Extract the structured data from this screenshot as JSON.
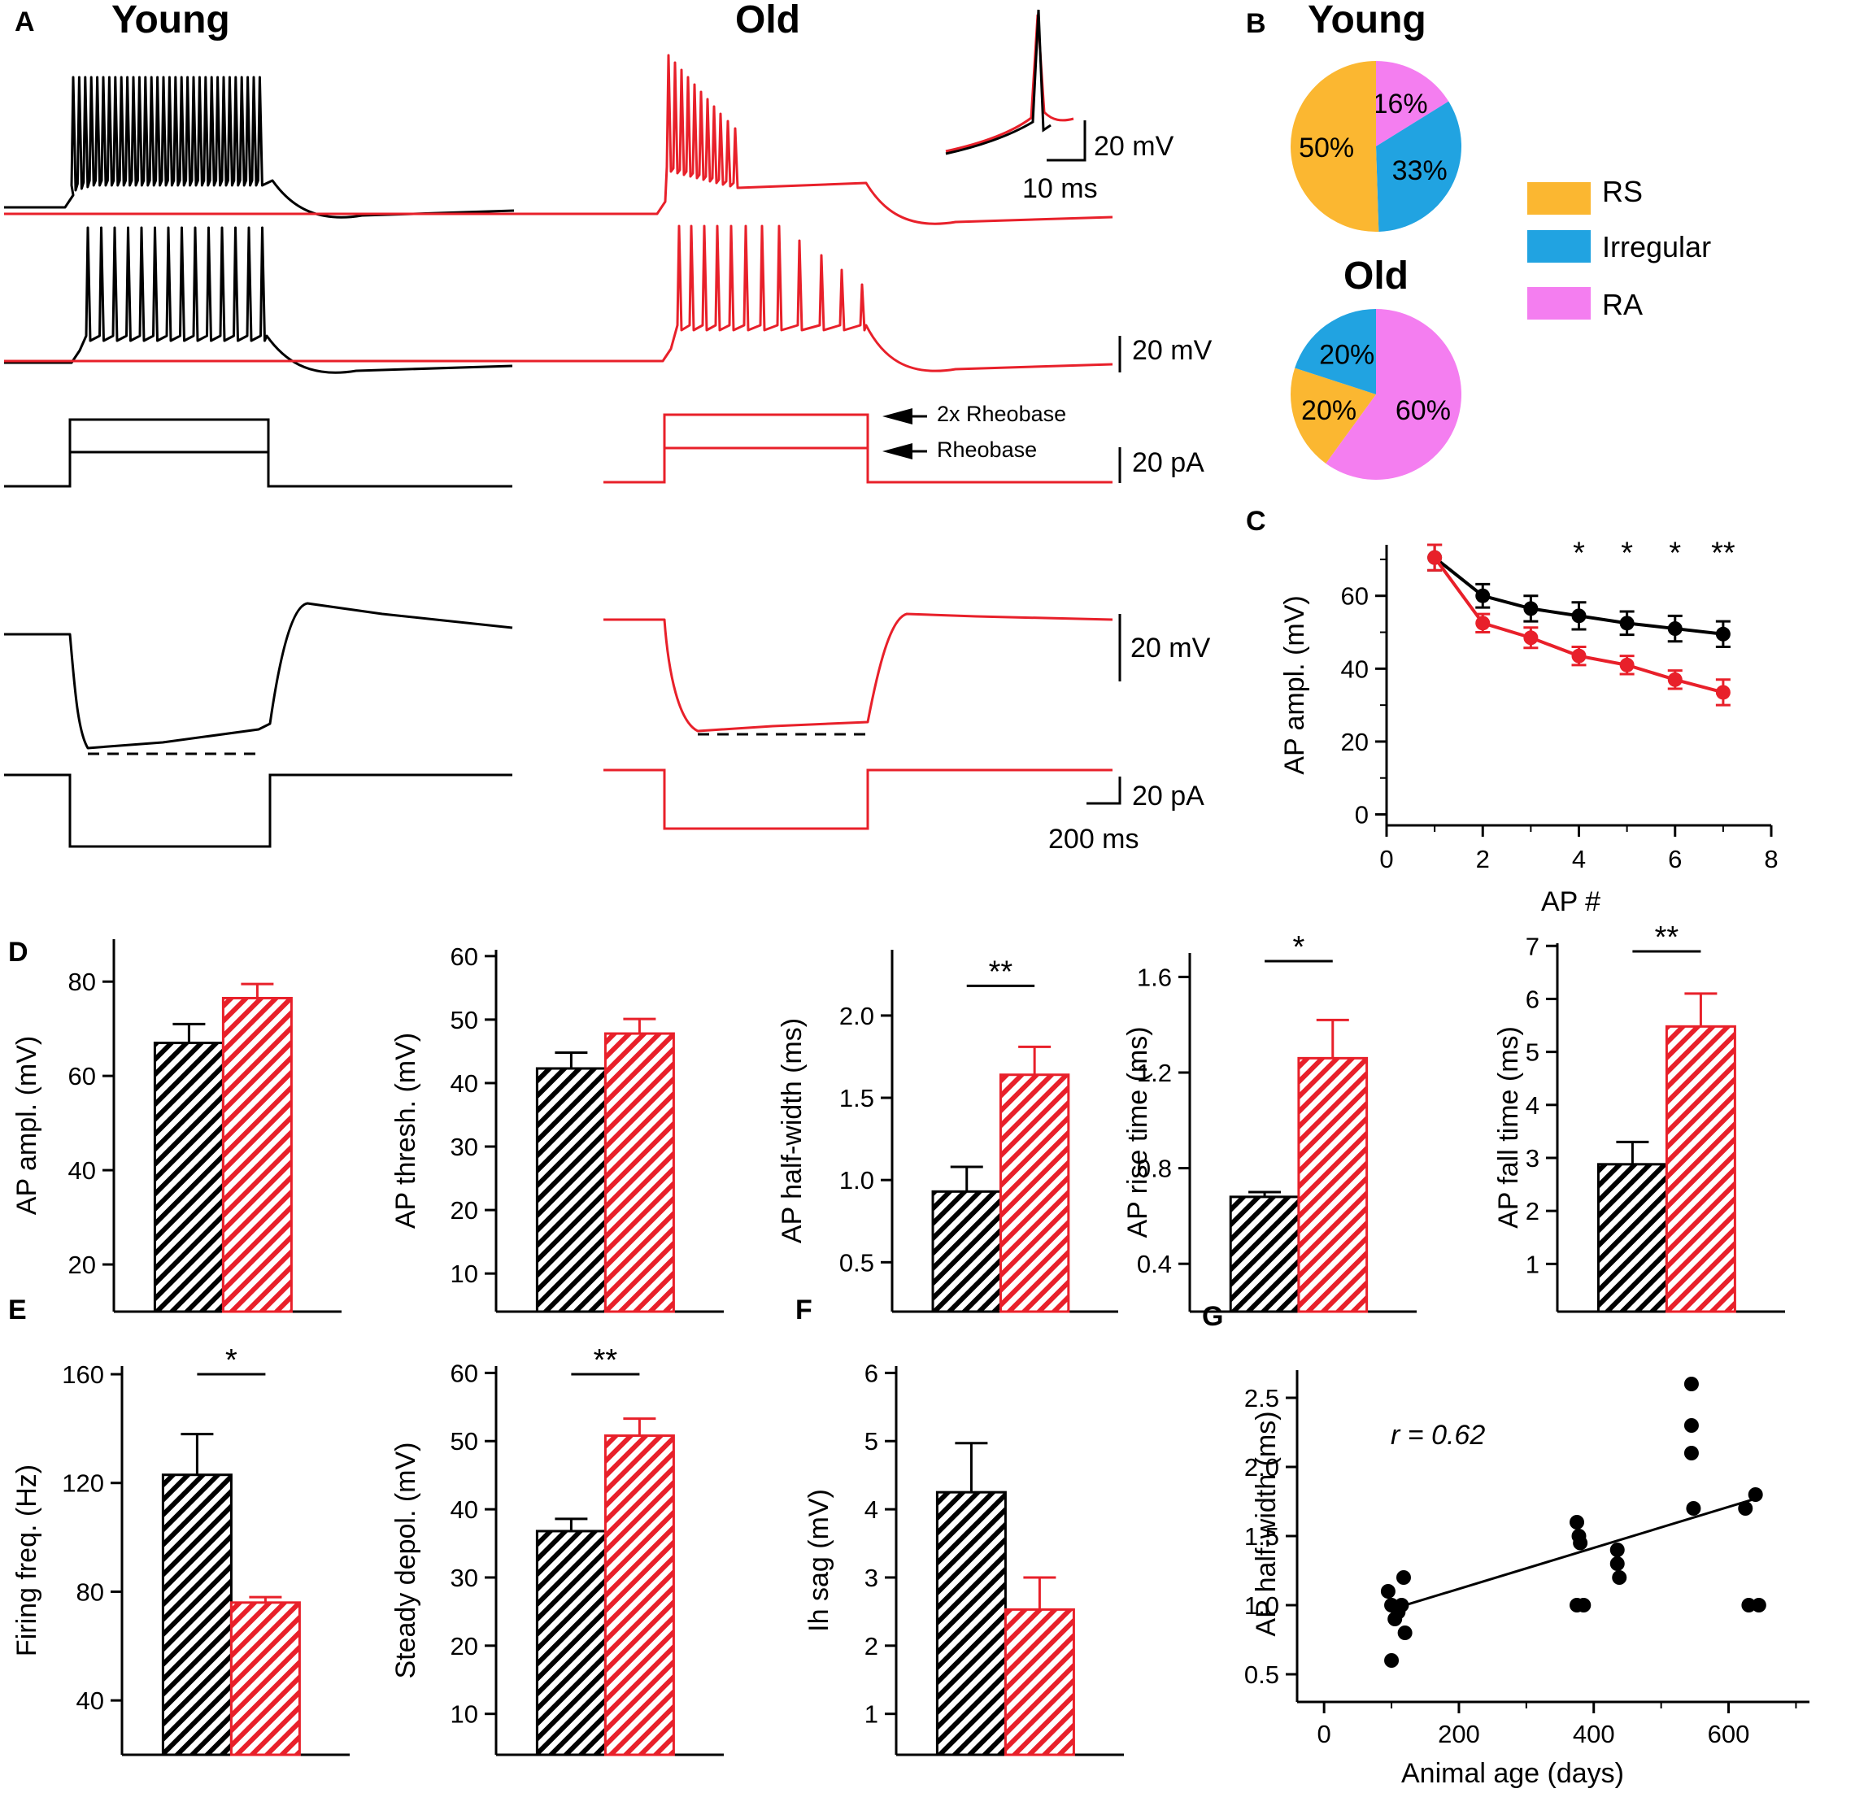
{
  "panel_labels": {
    "A": "A",
    "B": "B",
    "C": "C",
    "D": "D",
    "E": "E",
    "F": "F",
    "G": "G"
  },
  "colors": {
    "young": "#000000",
    "old": "#e8202a",
    "rs": "#fbb731",
    "irregular": "#21a3e1",
    "ra": "#f47ef0"
  },
  "panel_a": {
    "young_title": "Young",
    "old_title": "Old",
    "scale_inset_mv": "20 mV",
    "scale_inset_ms": "10 ms",
    "scale_mv_1": "20 mV",
    "scale_pa_1": "20 pA",
    "scale_mv_2": "20 mV",
    "scale_pa_2": "20 pA",
    "scale_time": "200 ms",
    "arrow_2x_rheobase": "2x Rheobase",
    "arrow_rheobase": "Rheobase"
  },
  "panel_b": {
    "young_title": "Young",
    "old_title": "Old",
    "legend": [
      {
        "key": "rs",
        "label": "RS"
      },
      {
        "key": "irregular",
        "label": "Irregular"
      },
      {
        "key": "ra",
        "label": "RA"
      }
    ]
  },
  "chart_data": [
    {
      "id": "B-young",
      "type": "pie",
      "title": "Young",
      "slices": [
        {
          "label": "RA",
          "value": 16,
          "text": "16%",
          "color": "#f47ef0"
        },
        {
          "label": "Irregular",
          "value": 33,
          "text": "33%",
          "color": "#21a3e1"
        },
        {
          "label": "RS",
          "value": 50,
          "text": "50%",
          "color": "#fbb731"
        }
      ]
    },
    {
      "id": "B-old",
      "type": "pie",
      "title": "Old",
      "slices": [
        {
          "label": "RA",
          "value": 60,
          "text": "60%",
          "color": "#f47ef0"
        },
        {
          "label": "RS",
          "value": 20,
          "text": "20%",
          "color": "#fbb731"
        },
        {
          "label": "Irregular",
          "value": 20,
          "text": "20%",
          "color": "#21a3e1"
        }
      ]
    },
    {
      "id": "C",
      "type": "line",
      "xlabel": "AP #",
      "ylabel": "AP ampl. (mV)",
      "xlim": [
        0,
        8
      ],
      "ylim": [
        -3,
        74
      ],
      "xticks": [
        "0",
        "2",
        "4",
        "6",
        "8"
      ],
      "yticks": [
        "0",
        "20",
        "40",
        "60"
      ],
      "series": [
        {
          "name": "Young",
          "color": "#000000",
          "x": [
            1,
            2,
            3,
            4,
            5,
            6,
            7
          ],
          "y": [
            70.5,
            60,
            56.5,
            54.5,
            52.5,
            51,
            49.5
          ],
          "err": [
            3.5,
            3.2,
            3.5,
            3.7,
            3.2,
            3.5,
            3.5
          ]
        },
        {
          "name": "Old",
          "color": "#e8202a",
          "x": [
            1,
            2,
            3,
            4,
            5,
            6,
            7
          ],
          "y": [
            70.5,
            52.5,
            48.5,
            43.5,
            41,
            37,
            33.5
          ],
          "err": [
            3.5,
            2.5,
            2.8,
            2.5,
            2.5,
            2.5,
            3.5
          ]
        }
      ],
      "significance": [
        {
          "x": 4,
          "text": "*"
        },
        {
          "x": 5,
          "text": "*"
        },
        {
          "x": 6,
          "text": "*"
        },
        {
          "x": 7,
          "text": "**"
        }
      ]
    },
    {
      "id": "D1",
      "type": "bar",
      "ylabel": "AP ampl. (mV)",
      "ylim": [
        10,
        89
      ],
      "yticks": [
        "20",
        "40",
        "60",
        "80"
      ],
      "categories": [
        "Young",
        "Old"
      ],
      "values": [
        67,
        76.5
      ],
      "errors": [
        4,
        3
      ],
      "significance": ""
    },
    {
      "id": "D2",
      "type": "bar",
      "ylabel": "AP thresh. (mV)",
      "ylim": [
        4,
        61
      ],
      "yticks": [
        "10",
        "20",
        "30",
        "40",
        "50",
        "60"
      ],
      "categories": [
        "Young",
        "Old"
      ],
      "values": [
        42.3,
        47.8
      ],
      "errors": [
        2.5,
        2.3
      ],
      "significance": ""
    },
    {
      "id": "D3",
      "type": "bar",
      "ylabel": "AP half-width (ms)",
      "ylim": [
        0.2,
        2.4
      ],
      "yticks": [
        "0.5",
        "1.0",
        "1.5",
        "2.0"
      ],
      "categories": [
        "Young",
        "Old"
      ],
      "values": [
        0.93,
        1.64
      ],
      "errors": [
        0.15,
        0.17
      ],
      "significance": "**"
    },
    {
      "id": "D4",
      "type": "bar",
      "ylabel": "AP rise time (ms)",
      "ylim": [
        0.2,
        1.7
      ],
      "yticks": [
        "0.4",
        "0.8",
        "1.2",
        "1.6"
      ],
      "categories": [
        "Young",
        "Old"
      ],
      "values": [
        0.68,
        1.26
      ],
      "errors": [
        0.02,
        0.16
      ],
      "significance": "*"
    },
    {
      "id": "D5",
      "type": "bar",
      "ylabel": "AP fall time (ms)",
      "ylim": [
        0.1,
        7.05
      ],
      "yticks": [
        "1",
        "2",
        "3",
        "4",
        "5",
        "6",
        "7"
      ],
      "categories": [
        "Young",
        "Old"
      ],
      "values": [
        2.88,
        5.48
      ],
      "errors": [
        0.42,
        0.62
      ],
      "significance": "**"
    },
    {
      "id": "E1",
      "type": "bar",
      "ylabel": "Firing freq. (Hz)",
      "ylim": [
        20,
        163
      ],
      "yticks": [
        "40",
        "80",
        "120",
        "160"
      ],
      "categories": [
        "Young",
        "Old"
      ],
      "values": [
        123,
        76
      ],
      "errors": [
        15,
        2
      ],
      "significance": "*"
    },
    {
      "id": "E2",
      "type": "bar",
      "ylabel": "Steady depol. (mV)",
      "ylim": [
        4,
        61
      ],
      "yticks": [
        "10",
        "20",
        "30",
        "40",
        "50",
        "60"
      ],
      "categories": [
        "Young",
        "Old"
      ],
      "values": [
        36.8,
        50.8
      ],
      "errors": [
        1.8,
        2.5
      ],
      "significance": "**"
    },
    {
      "id": "F",
      "type": "bar",
      "ylabel": "Ih sag (mV)",
      "ylim": [
        0.4,
        6.1
      ],
      "yticks": [
        "1",
        "2",
        "3",
        "4",
        "5",
        "6"
      ],
      "categories": [
        "Young",
        "Old"
      ],
      "values": [
        4.25,
        2.53
      ],
      "errors": [
        0.72,
        0.47
      ],
      "significance": ""
    },
    {
      "id": "G",
      "type": "scatter",
      "xlabel": "Animal age (days)",
      "ylabel": "AP half-width (ms)",
      "xlim": [
        -40,
        720
      ],
      "ylim": [
        0.3,
        2.7
      ],
      "xticks": [
        "0",
        "200",
        "400",
        "600"
      ],
      "yticks": [
        "0.5",
        "1.0",
        "1.5",
        "2.0",
        "2.5"
      ],
      "annotation": "r = 0.62",
      "points": [
        [
          95,
          1.1
        ],
        [
          100,
          1.0
        ],
        [
          100,
          0.6
        ],
        [
          105,
          0.9
        ],
        [
          110,
          0.95
        ],
        [
          115,
          1.0
        ],
        [
          118,
          1.2
        ],
        [
          120,
          0.8
        ],
        [
          375,
          1.6
        ],
        [
          375,
          1.0
        ],
        [
          378,
          1.5
        ],
        [
          380,
          1.45
        ],
        [
          385,
          1.0
        ],
        [
          435,
          1.4
        ],
        [
          435,
          1.3
        ],
        [
          438,
          1.2
        ],
        [
          545,
          2.6
        ],
        [
          545,
          2.3
        ],
        [
          545,
          2.1
        ],
        [
          548,
          1.7
        ],
        [
          625,
          1.7
        ],
        [
          630,
          1.0
        ],
        [
          640,
          1.8
        ],
        [
          645,
          1.0
        ]
      ],
      "fit": {
        "x": [
          100,
          640
        ],
        "y": [
          0.97,
          1.77
        ]
      }
    }
  ]
}
